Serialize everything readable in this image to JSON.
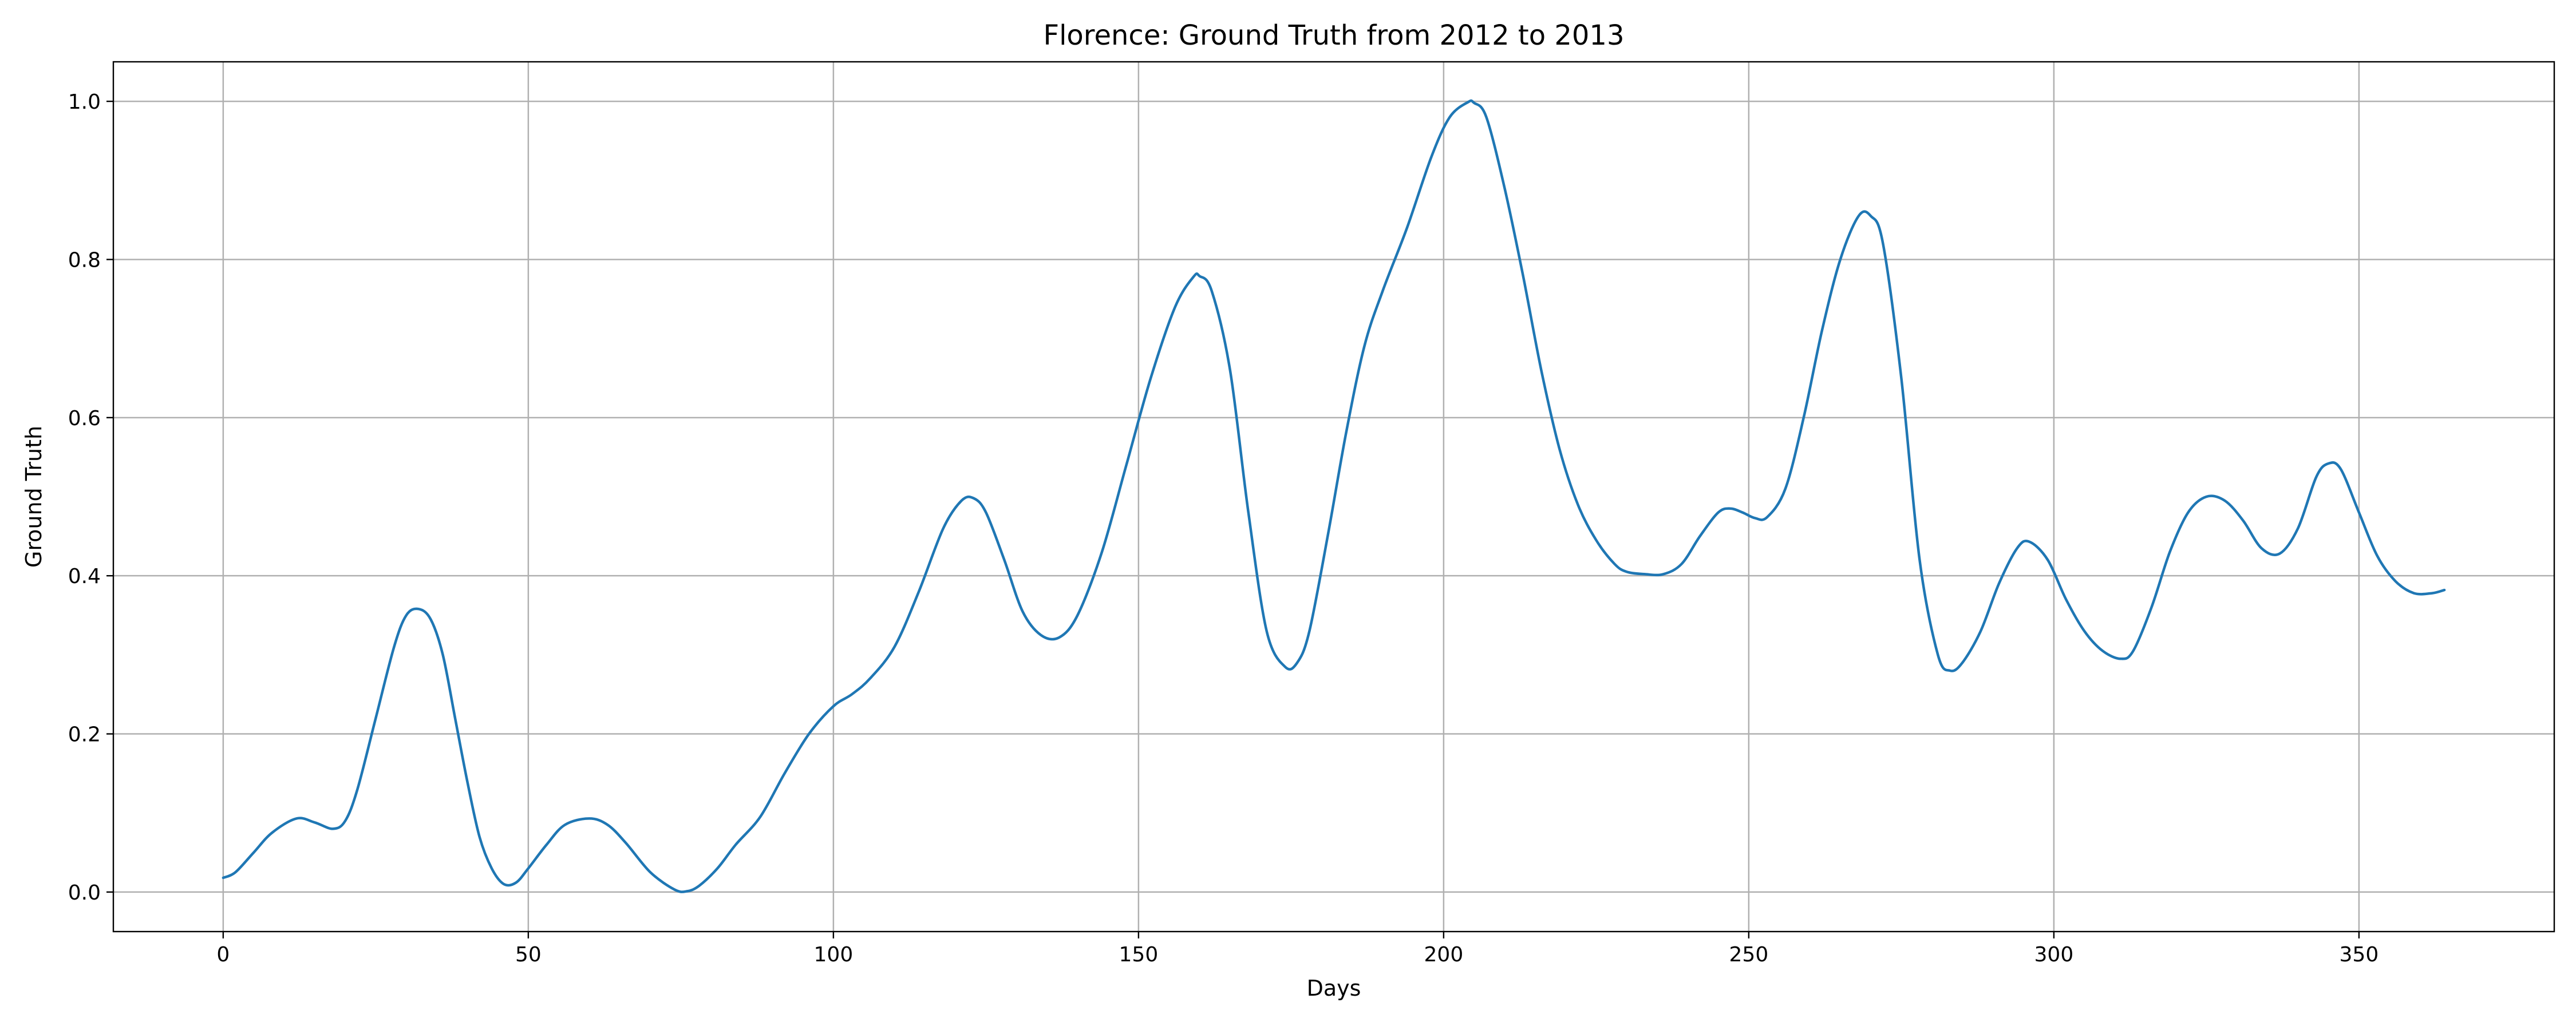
{
  "chart_data": {
    "type": "line",
    "title": "Florence: Ground Truth from 2012 to 2013",
    "xlabel": "Days",
    "ylabel": "Ground Truth",
    "xlim": [
      -18,
      382
    ],
    "ylim": [
      -0.05,
      1.05
    ],
    "xticks": [
      0,
      50,
      100,
      150,
      200,
      250,
      300,
      350
    ],
    "yticks": [
      0.0,
      0.2,
      0.4,
      0.6,
      0.8,
      1.0
    ],
    "xtick_labels": [
      "0",
      "50",
      "100",
      "150",
      "200",
      "250",
      "300",
      "350"
    ],
    "ytick_labels": [
      "0.0",
      "0.2",
      "0.4",
      "0.6",
      "0.8",
      "1.0"
    ],
    "grid": true,
    "color": "#1f77b4",
    "series": [
      {
        "x": [
          0,
          2,
          5,
          8,
          12,
          15,
          18,
          20,
          22,
          25,
          28,
          30,
          32,
          34,
          36,
          38,
          40,
          42,
          44,
          46,
          48,
          50,
          53,
          56,
          60,
          63,
          66,
          70,
          74,
          76,
          78,
          81,
          84,
          88,
          92,
          96,
          100,
          103,
          106,
          110,
          114,
          118,
          121,
          123,
          125,
          128,
          131,
          134,
          137,
          140,
          144,
          148,
          152,
          156,
          159,
          160,
          162,
          165,
          168,
          171,
          174,
          176,
          178,
          181,
          184,
          187,
          190,
          194,
          198,
          201,
          204,
          205,
          207,
          210,
          213,
          216,
          219,
          222,
          225,
          228,
          230,
          233,
          236,
          239,
          242,
          245,
          247,
          249,
          251,
          253,
          256,
          259,
          262,
          265,
          268,
          270,
          272,
          275,
          278,
          281,
          283,
          285,
          288,
          291,
          294,
          296,
          299,
          302,
          305,
          308,
          311,
          313,
          316,
          319,
          322,
          325,
          328,
          331,
          334,
          337,
          340,
          343,
          345,
          347,
          350,
          353,
          356,
          359,
          362,
          364
        ],
        "y": [
          0.018,
          0.025,
          0.05,
          0.075,
          0.093,
          0.088,
          0.08,
          0.09,
          0.13,
          0.22,
          0.31,
          0.35,
          0.358,
          0.345,
          0.3,
          0.22,
          0.14,
          0.07,
          0.03,
          0.01,
          0.012,
          0.03,
          0.06,
          0.085,
          0.093,
          0.085,
          0.062,
          0.025,
          0.003,
          0.001,
          0.008,
          0.03,
          0.06,
          0.095,
          0.15,
          0.2,
          0.235,
          0.25,
          0.27,
          0.31,
          0.38,
          0.46,
          0.495,
          0.498,
          0.48,
          0.42,
          0.355,
          0.325,
          0.322,
          0.35,
          0.43,
          0.54,
          0.65,
          0.74,
          0.778,
          0.779,
          0.76,
          0.66,
          0.48,
          0.33,
          0.285,
          0.29,
          0.33,
          0.45,
          0.58,
          0.69,
          0.76,
          0.84,
          0.93,
          0.98,
          0.999,
          0.998,
          0.98,
          0.89,
          0.78,
          0.66,
          0.56,
          0.49,
          0.445,
          0.415,
          0.405,
          0.402,
          0.402,
          0.415,
          0.45,
          0.48,
          0.485,
          0.48,
          0.473,
          0.474,
          0.51,
          0.6,
          0.71,
          0.8,
          0.855,
          0.855,
          0.82,
          0.65,
          0.42,
          0.3,
          0.28,
          0.29,
          0.33,
          0.39,
          0.435,
          0.443,
          0.42,
          0.37,
          0.33,
          0.305,
          0.295,
          0.305,
          0.36,
          0.43,
          0.48,
          0.5,
          0.495,
          0.47,
          0.435,
          0.428,
          0.46,
          0.525,
          0.542,
          0.535,
          0.48,
          0.425,
          0.393,
          0.378,
          0.378,
          0.382
        ]
      }
    ]
  }
}
